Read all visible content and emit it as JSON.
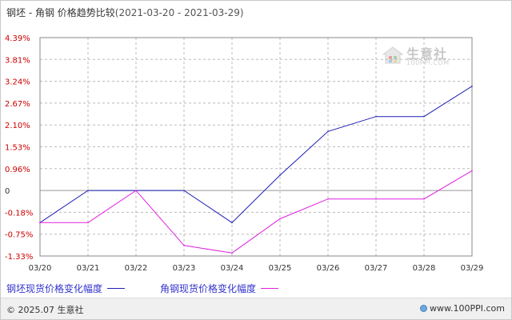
{
  "title": {
    "main": "钢坯 - 角钢 价格趋势比较",
    "range": "(2021-03-20 - 2021-03-29)"
  },
  "watermark": {
    "name": "生意社",
    "url": "100PPI.COM"
  },
  "footer": {
    "copyright": "© 2025.07 生意社",
    "site": "www.100PPI.com"
  },
  "colors": {
    "series1": "#1f1fb4",
    "series2": "#e020e0",
    "tick_labels": "#cc0000",
    "grid": "#bbbbbb"
  },
  "chart_data": {
    "type": "line",
    "x": [
      "03/20",
      "03/21",
      "03/22",
      "03/23",
      "03/24",
      "03/25",
      "03/26",
      "03/27",
      "03/28",
      "03/29"
    ],
    "yticks": [
      "4.39%",
      "3.81%",
      "3.24%",
      "2.67%",
      "2.10%",
      "1.53%",
      "0.96%",
      "0",
      "-0.18%",
      "-0.75%",
      "-1.33%"
    ],
    "ytick_values": [
      4.39,
      3.81,
      3.24,
      2.67,
      2.1,
      1.53,
      0.96,
      0,
      -0.18,
      -0.75,
      -1.33
    ],
    "ylim": [
      -1.33,
      4.39
    ],
    "grid": true,
    "legend_position": "bottom-left",
    "series": [
      {
        "name": "钢坯现货价格变化幅度",
        "color": "#1f1fb4",
        "values": [
          -0.45,
          0,
          0,
          0,
          -0.45,
          0.67,
          1.93,
          2.32,
          2.32,
          3.11
        ]
      },
      {
        "name": "角钢现货价格变化幅度",
        "color": "#e020e0",
        "values": [
          -0.45,
          -0.45,
          0,
          -1.05,
          -1.25,
          -0.35,
          -0.07,
          -0.07,
          -0.07,
          0.87
        ]
      }
    ]
  }
}
